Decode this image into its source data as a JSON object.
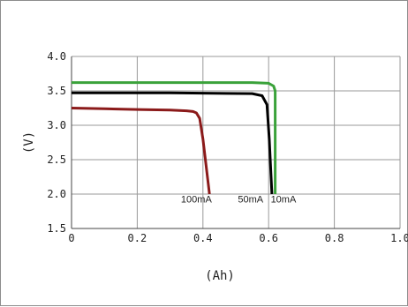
{
  "chart_data": {
    "type": "line",
    "title": "",
    "xlabel": "(Ah)",
    "ylabel": "(V)",
    "xlim": [
      0,
      1.0
    ],
    "ylim": [
      1.5,
      4.0
    ],
    "xticks": [
      0,
      0.2,
      0.4,
      0.6,
      0.8,
      1.0
    ],
    "xtick_labels": [
      "0",
      "0.2",
      "0.4",
      "0.6",
      "0.8",
      "1.0"
    ],
    "yticks": [
      1.5,
      2.0,
      2.5,
      3.0,
      3.5,
      4.0
    ],
    "ytick_labels": [
      "1.5",
      "2.0",
      "2.5",
      "3.0",
      "3.5",
      "4.0"
    ],
    "grid": true,
    "series": [
      {
        "name": "10mA",
        "color": "#3aa23a",
        "x": [
          0,
          0.3,
          0.55,
          0.6,
          0.615,
          0.62,
          0.62
        ],
        "y": [
          3.62,
          3.62,
          3.62,
          3.61,
          3.57,
          3.5,
          2.0
        ]
      },
      {
        "name": "50mA",
        "color": "#000000",
        "x": [
          0,
          0.3,
          0.55,
          0.58,
          0.595,
          0.602,
          0.61
        ],
        "y": [
          3.47,
          3.47,
          3.46,
          3.43,
          3.3,
          2.8,
          2.0
        ]
      },
      {
        "name": "100mA",
        "color": "#8b1a1a",
        "x": [
          0,
          0.1,
          0.2,
          0.3,
          0.35,
          0.37,
          0.38,
          0.39,
          0.4,
          0.42
        ],
        "y": [
          3.25,
          3.24,
          3.23,
          3.22,
          3.21,
          3.2,
          3.18,
          3.1,
          2.8,
          2.0
        ]
      }
    ],
    "series_labels": [
      {
        "text": "100mA",
        "x": 0.38,
        "y": 1.88
      },
      {
        "text": "50mA",
        "x": 0.545,
        "y": 1.88
      },
      {
        "text": "10mA",
        "x": 0.645,
        "y": 1.88
      }
    ]
  }
}
